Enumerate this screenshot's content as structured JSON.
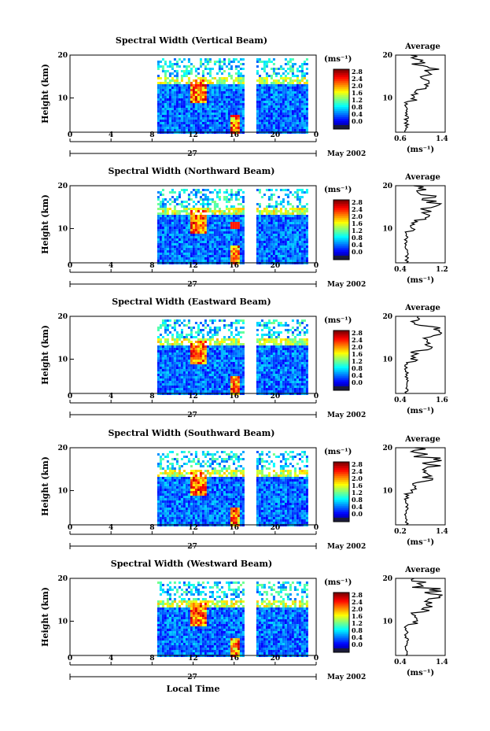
{
  "chart_data": {
    "type": "heatmap",
    "x_axis": {
      "ticks": [
        "0",
        "4",
        "8",
        "12",
        "16",
        "20",
        "0"
      ],
      "day_label": "27",
      "month_label": "May 2002",
      "xlabel": "Local Time",
      "xlim": [
        0,
        24
      ]
    },
    "y_axis": {
      "ylabel": "Height (km)",
      "ticks": [
        "20",
        "10"
      ],
      "ylim": [
        2,
        20
      ]
    },
    "colorbar": {
      "unit": "(ms⁻¹)",
      "labels": [
        "2.8",
        "2.4",
        "2.0",
        "1.6",
        "1.2",
        "0.8",
        "0.4",
        "0.0"
      ],
      "range": [
        0.0,
        3.0
      ]
    },
    "data_window": {
      "start_hour": 8.5,
      "end_hour": 23,
      "gap_hours": [
        [
          17.2,
          18.0
        ]
      ]
    },
    "average_label": "Average",
    "average_unit": "(ms⁻¹)",
    "panels": [
      {
        "title": "Spectral Width (Vertical Beam)",
        "avg_xticks": [
          "0.6",
          "1.4"
        ],
        "avg_xlim": [
          0.4,
          1.4
        ]
      },
      {
        "title": "Spectral Width (Northward Beam)",
        "avg_xticks": [
          "0.4",
          "1.2"
        ],
        "avg_xlim": [
          0.3,
          1.3
        ]
      },
      {
        "title": "Spectral Width (Eastward Beam)",
        "avg_xticks": [
          "0.4",
          "1.6"
        ],
        "avg_xlim": [
          0.3,
          1.7
        ]
      },
      {
        "title": "Spectral Width (Southward Beam)",
        "avg_xticks": [
          "0.2",
          "1.4"
        ],
        "avg_xlim": [
          0.2,
          1.4
        ]
      },
      {
        "title": "Spectral Width (Westward Beam)",
        "avg_xticks": [
          "0.4",
          "1.4"
        ],
        "avg_xlim": [
          0.4,
          1.4
        ]
      }
    ]
  }
}
